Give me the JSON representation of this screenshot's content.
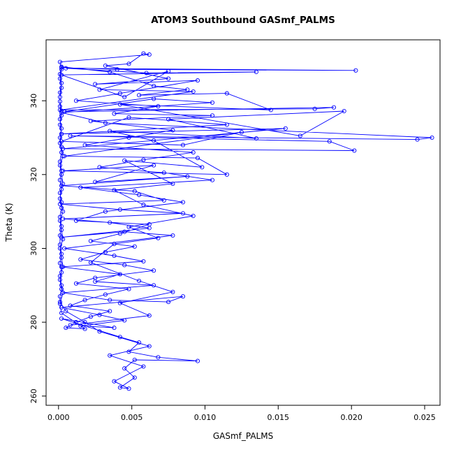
{
  "chart_data": {
    "type": "line",
    "marker": "open-circle",
    "title": "ATOM3 Southbound GASmf_PALMS",
    "xlabel": "GASmf_PALMS",
    "ylabel": "Theta (K)",
    "color": "#0000FF",
    "axis_color": "#000000",
    "grid": false,
    "legend": "none",
    "xlim": [
      -0.00085,
      0.02605
    ],
    "ylim": [
      257.5,
      356.5
    ],
    "x_ticks": [
      0.0,
      0.005,
      0.01,
      0.015,
      0.02,
      0.025
    ],
    "x_tick_labels": [
      "0.000",
      "0.005",
      "0.010",
      "0.015",
      "0.020",
      "0.025"
    ],
    "y_ticks": [
      260,
      280,
      300,
      320,
      340
    ],
    "y_tick_labels": [
      "260",
      "280",
      "300",
      "320",
      "340"
    ],
    "points": [
      [
        0.0002,
        349
      ],
      [
        0.004,
        348.5
      ],
      [
        0.0203,
        348.2
      ],
      [
        0.0005,
        348.8
      ],
      [
        0.006,
        347.5
      ],
      [
        0.0135,
        347.8
      ],
      [
        0.0002,
        347
      ],
      [
        0.0045,
        341
      ],
      [
        0.0075,
        348
      ],
      [
        0.0028,
        343
      ],
      [
        0.0092,
        342.5
      ],
      [
        0.0001,
        337.5
      ],
      [
        0.0175,
        337.8
      ],
      [
        0.0188,
        338.2
      ],
      [
        0.0004,
        337
      ],
      [
        0.0065,
        340.5
      ],
      [
        0.0105,
        339.5
      ],
      [
        0.0002,
        336.8
      ],
      [
        0.0032,
        334
      ],
      [
        0.0255,
        330
      ],
      [
        0.0245,
        329.5
      ],
      [
        0.0008,
        330.5
      ],
      [
        0.0185,
        329
      ],
      [
        0.0202,
        326.5
      ],
      [
        0.0003,
        327
      ],
      [
        0.0155,
        332.5
      ],
      [
        0.0002,
        331
      ],
      [
        0.0115,
        333.5
      ],
      [
        0.0048,
        335.5
      ],
      [
        0.0002,
        329
      ],
      [
        0.0085,
        328
      ],
      [
        0.0125,
        331.5
      ],
      [
        0.0004,
        325
      ],
      [
        0.0095,
        324.5
      ],
      [
        0.0115,
        320
      ],
      [
        0.0003,
        321
      ],
      [
        0.0065,
        322.5
      ],
      [
        0.0025,
        318
      ],
      [
        0.0088,
        319.5
      ],
      [
        0.0002,
        317
      ],
      [
        0.0052,
        315.5
      ],
      [
        0.0072,
        313
      ],
      [
        0.0001,
        312
      ],
      [
        0.0042,
        310.5
      ],
      [
        0.0085,
        309.5
      ],
      [
        0.0003,
        308
      ],
      [
        0.0035,
        307
      ],
      [
        0.0062,
        305.5
      ],
      [
        0.0002,
        303
      ],
      [
        0.0045,
        304.5
      ],
      [
        0.0078,
        303.5
      ],
      [
        0.0004,
        300
      ],
      [
        0.0038,
        298
      ],
      [
        0.0058,
        296.5
      ],
      [
        0.0002,
        295
      ],
      [
        0.0042,
        293
      ],
      [
        0.0025,
        291
      ],
      [
        0.0065,
        290
      ],
      [
        0.0003,
        288
      ],
      [
        0.0035,
        286
      ],
      [
        0.0075,
        285.5
      ],
      [
        0.0085,
        287
      ],
      [
        0.0002,
        284
      ],
      [
        0.0028,
        282
      ],
      [
        0.0045,
        280.5
      ],
      [
        0.0015,
        279
      ],
      [
        0.0038,
        278.5
      ],
      [
        0.0002,
        281
      ],
      [
        0.0042,
        276
      ],
      [
        0.0055,
        274.5
      ],
      [
        0.0048,
        272
      ],
      [
        0.0068,
        270.5
      ],
      [
        0.0095,
        269.5
      ],
      [
        0.0052,
        269.8
      ],
      [
        0.0045,
        267.5
      ],
      [
        0.0052,
        265
      ],
      [
        0.0042,
        262.3
      ],
      [
        0.0048,
        262
      ],
      [
        0.0038,
        264
      ],
      [
        0.0058,
        268
      ],
      [
        0.0035,
        271
      ],
      [
        0.0062,
        273.5
      ],
      [
        0.0028,
        277.5
      ],
      [
        0.0018,
        280
      ],
      [
        0.0005,
        283
      ],
      [
        0.0001,
        285.5
      ],
      [
        0.0001,
        287
      ],
      [
        0.0002,
        289
      ],
      [
        0.0001,
        291.5
      ],
      [
        0.0002,
        293.5
      ],
      [
        0.0001,
        296
      ],
      [
        0.0002,
        298.5
      ],
      [
        0.0001,
        301
      ],
      [
        0.0001,
        303.5
      ],
      [
        0.0002,
        306
      ],
      [
        0.0001,
        308.5
      ],
      [
        0.0002,
        311
      ],
      [
        0.0001,
        313.5
      ],
      [
        0.0002,
        316
      ],
      [
        0.0001,
        318.5
      ],
      [
        0.0002,
        321
      ],
      [
        0.0001,
        323.5
      ],
      [
        0.0002,
        326
      ],
      [
        0.0001,
        328.5
      ],
      [
        0.0002,
        331
      ],
      [
        0.0001,
        333.5
      ],
      [
        0.0002,
        336
      ],
      [
        0.0001,
        338.5
      ],
      [
        0.0001,
        341
      ],
      [
        0.0002,
        343.5
      ],
      [
        0.0001,
        346
      ],
      [
        0.0002,
        348.5
      ],
      [
        0.0001,
        350.5
      ],
      [
        0.0062,
        352.5
      ],
      [
        0.0058,
        352.8
      ],
      [
        0.0048,
        350
      ],
      [
        0.0032,
        349.5
      ],
      [
        0.0075,
        346
      ],
      [
        0.0025,
        344.5
      ],
      [
        0.0095,
        345.5
      ],
      [
        0.0042,
        342
      ],
      [
        0.0012,
        340
      ],
      [
        0.0068,
        338.5
      ],
      [
        0.0038,
        336.5
      ],
      [
        0.0105,
        336
      ],
      [
        0.0022,
        334.5
      ],
      [
        0.0078,
        332
      ],
      [
        0.0048,
        330
      ],
      [
        0.0018,
        328
      ],
      [
        0.0092,
        326
      ],
      [
        0.0058,
        324
      ],
      [
        0.0028,
        322
      ],
      [
        0.0072,
        320.5
      ],
      [
        0.0105,
        318.5
      ],
      [
        0.0015,
        316.5
      ],
      [
        0.0055,
        314.5
      ],
      [
        0.0085,
        312.5
      ],
      [
        0.0032,
        310
      ],
      [
        0.0012,
        307.5
      ],
      [
        0.0062,
        306.5
      ],
      [
        0.0042,
        304
      ],
      [
        0.0022,
        302
      ],
      [
        0.0052,
        300.5
      ],
      [
        0.0032,
        299
      ],
      [
        0.0015,
        297
      ],
      [
        0.0045,
        295.5
      ],
      [
        0.0065,
        294
      ],
      [
        0.0025,
        292
      ],
      [
        0.0012,
        290.5
      ],
      [
        0.0048,
        289
      ],
      [
        0.0032,
        287.5
      ],
      [
        0.0018,
        286
      ],
      [
        0.0008,
        284.5
      ],
      [
        0.0035,
        283
      ],
      [
        0.0022,
        281.5
      ],
      [
        0.0012,
        280
      ],
      [
        0.0005,
        278.5
      ],
      [
        0.0018,
        278.2
      ],
      [
        0.0002,
        282.5
      ],
      [
        0.0001,
        285
      ],
      [
        0.0003,
        288
      ],
      [
        0.0002,
        290
      ],
      [
        0.0001,
        292.5
      ],
      [
        0.0003,
        295
      ],
      [
        0.0002,
        297.5
      ],
      [
        0.0001,
        300
      ],
      [
        0.0003,
        302.5
      ],
      [
        0.0002,
        305
      ],
      [
        0.0001,
        307.5
      ],
      [
        0.0003,
        310
      ],
      [
        0.0002,
        312.5
      ],
      [
        0.0001,
        315
      ],
      [
        0.0003,
        317.5
      ],
      [
        0.0002,
        320
      ],
      [
        0.0001,
        322.5
      ],
      [
        0.0003,
        325
      ],
      [
        0.0002,
        327.5
      ],
      [
        0.0001,
        330
      ],
      [
        0.0002,
        332.5
      ],
      [
        0.0001,
        335
      ],
      [
        0.0002,
        337.3
      ],
      [
        0.0001,
        339.8
      ],
      [
        0.0001,
        342.2
      ],
      [
        0.0002,
        344.8
      ],
      [
        0.0001,
        347.2
      ],
      [
        0.0002,
        349.2
      ],
      [
        0.0035,
        347.8
      ],
      [
        0.0065,
        344
      ],
      [
        0.0088,
        343
      ],
      [
        0.0055,
        341.5
      ],
      [
        0.0115,
        342
      ],
      [
        0.0145,
        337.5
      ],
      [
        0.0042,
        339
      ],
      [
        0.0165,
        330.5
      ],
      [
        0.0195,
        337.2
      ],
      [
        0.0075,
        335
      ],
      [
        0.0135,
        329.8
      ],
      [
        0.0035,
        331.8
      ],
      [
        0.0065,
        329.2
      ],
      [
        0.0098,
        322
      ],
      [
        0.0045,
        323.8
      ],
      [
        0.0078,
        317.5
      ],
      [
        0.0038,
        315.8
      ],
      [
        0.0058,
        311.8
      ],
      [
        0.0092,
        308.8
      ],
      [
        0.0048,
        305.8
      ],
      [
        0.0068,
        302.8
      ],
      [
        0.0038,
        301.2
      ],
      [
        0.0022,
        296.2
      ],
      [
        0.0055,
        291.2
      ],
      [
        0.0078,
        288.2
      ],
      [
        0.0042,
        285.2
      ],
      [
        0.0062,
        281.8
      ],
      [
        0.0008,
        279.2
      ]
    ]
  }
}
